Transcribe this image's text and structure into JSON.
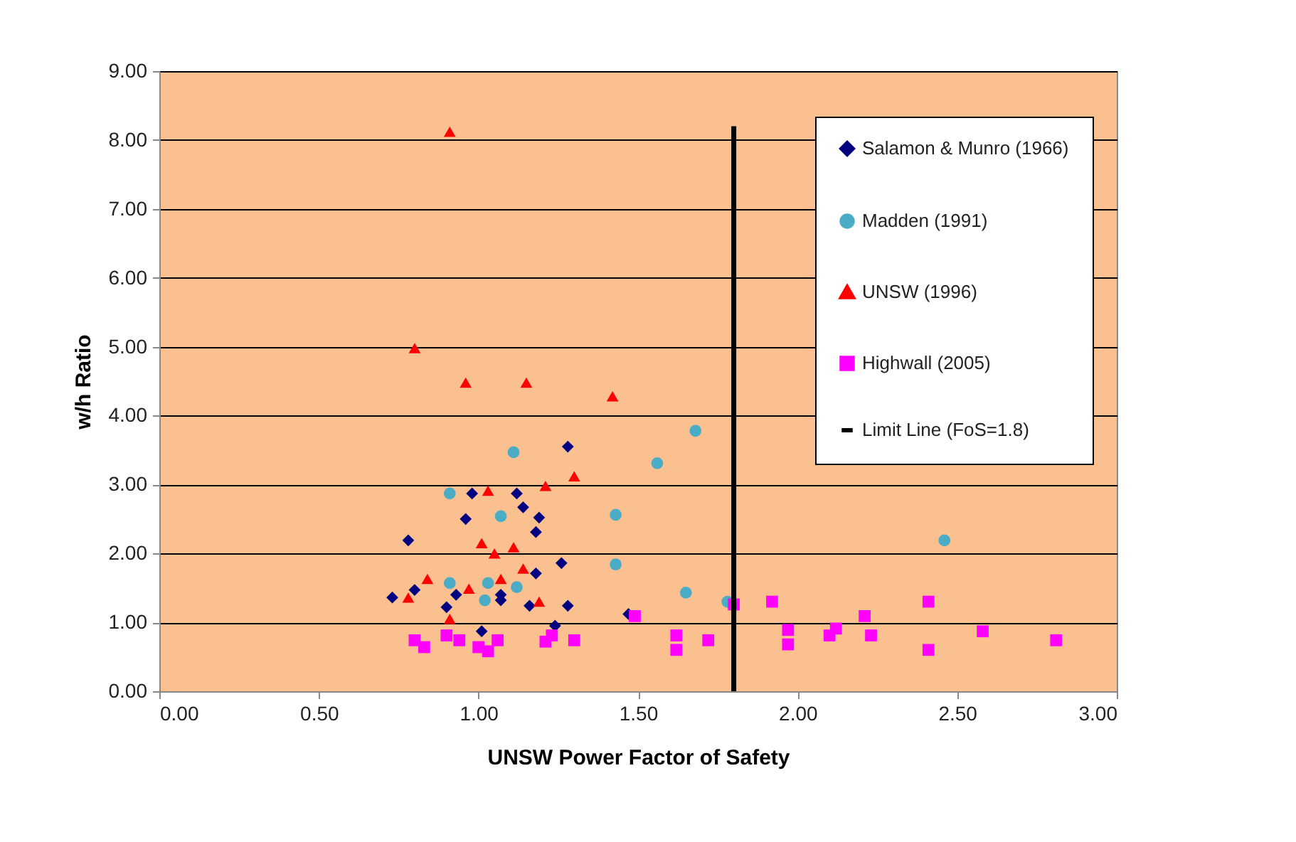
{
  "chart_data": {
    "type": "scatter",
    "xlabel": "UNSW Power Factor of Safety",
    "ylabel": "w/h Ratio",
    "xlim": [
      0,
      3
    ],
    "ylim": [
      0,
      9
    ],
    "xticks": [
      {
        "value": 0,
        "label": "0.00"
      },
      {
        "value": 0.5,
        "label": "0.50"
      },
      {
        "value": 1,
        "label": "1.00"
      },
      {
        "value": 1.5,
        "label": "1.50"
      },
      {
        "value": 2,
        "label": "2.00"
      },
      {
        "value": 2.5,
        "label": "2.50"
      },
      {
        "value": 3,
        "label": "3.00"
      }
    ],
    "yticks": [
      {
        "value": 0,
        "label": "0.00"
      },
      {
        "value": 1,
        "label": "1.00"
      },
      {
        "value": 2,
        "label": "2.00"
      },
      {
        "value": 3,
        "label": "3.00"
      },
      {
        "value": 4,
        "label": "4.00"
      },
      {
        "value": 5,
        "label": "5.00"
      },
      {
        "value": 6,
        "label": "6.00"
      },
      {
        "value": 7,
        "label": "7.00"
      },
      {
        "value": 8,
        "label": "8.00"
      },
      {
        "value": 9,
        "label": "9.00"
      }
    ],
    "grid": "y",
    "legend": "top right",
    "series": [
      {
        "name": "Salamon & Munro (1966)",
        "color": "#000080",
        "marker": "diamond",
        "x": [
          1.28,
          0.98,
          1.12,
          1.14,
          1.19,
          1.18,
          0.96,
          0.78,
          1.26,
          1.18,
          0.73,
          0.8,
          0.93,
          1.07,
          1.07,
          0.9,
          1.16,
          1.28,
          1.24,
          1.01,
          1.47
        ],
        "values": [
          3.55,
          2.87,
          2.87,
          2.67,
          2.52,
          2.31,
          2.5,
          2.19,
          1.86,
          1.71,
          1.36,
          1.47,
          1.4,
          1.32,
          1.4,
          1.22,
          1.24,
          1.24,
          0.95,
          0.87,
          1.12
        ]
      },
      {
        "name": "Madden (1991)",
        "color": "#4bacc6",
        "marker": "circle",
        "x": [
          1.11,
          0.91,
          1.07,
          1.43,
          1.43,
          0.91,
          1.03,
          1.12,
          1.02,
          1.68,
          1.56,
          1.65,
          1.78,
          2.46
        ],
        "values": [
          3.47,
          2.87,
          2.54,
          2.56,
          1.84,
          1.57,
          1.57,
          1.51,
          1.32,
          3.78,
          3.31,
          1.43,
          1.3,
          2.19
        ]
      },
      {
        "name": "UNSW (1996)",
        "color": "#ff0000",
        "marker": "triangle",
        "x": [
          0.91,
          0.8,
          0.96,
          1.15,
          1.42,
          1.3,
          1.21,
          1.03,
          1.01,
          1.05,
          1.11,
          1.14,
          1.07,
          0.97,
          0.84,
          0.78,
          1.19,
          0.91
        ],
        "values": [
          8.12,
          4.98,
          4.48,
          4.48,
          4.28,
          3.12,
          2.98,
          2.91,
          2.15,
          2.0,
          2.09,
          1.78,
          1.63,
          1.49,
          1.63,
          1.36,
          1.3,
          1.05
        ]
      },
      {
        "name": "Highwall (2005)",
        "color": "#ff00ff",
        "marker": "square",
        "x": [
          0.8,
          0.83,
          0.9,
          0.94,
          1.0,
          1.03,
          1.06,
          1.21,
          1.23,
          1.3,
          1.49,
          1.62,
          1.62,
          1.72,
          1.8,
          1.92,
          1.97,
          1.97,
          2.1,
          2.12,
          2.21,
          2.23,
          2.41,
          2.41,
          2.58,
          2.81
        ],
        "values": [
          0.74,
          0.64,
          0.81,
          0.74,
          0.64,
          0.58,
          0.74,
          0.72,
          0.81,
          0.74,
          1.09,
          0.81,
          0.6,
          0.74,
          1.26,
          1.3,
          0.89,
          0.68,
          0.81,
          0.91,
          1.09,
          0.81,
          1.3,
          0.6,
          0.87,
          0.74
        ]
      },
      {
        "name": "Limit Line (FoS=1.8)",
        "type": "line",
        "color": "#000000",
        "line_style": "solid",
        "x": [
          1.8,
          1.8
        ],
        "values": [
          0,
          8.2
        ]
      }
    ]
  }
}
